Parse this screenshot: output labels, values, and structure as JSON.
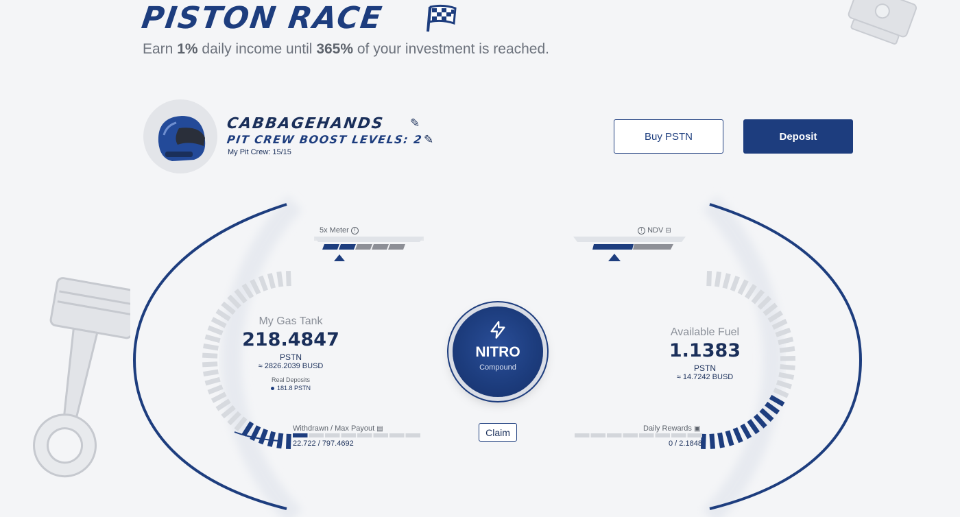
{
  "header": {
    "title": "PISTON RACE",
    "subtitle_prefix": "Earn ",
    "subtitle_rate": "1%",
    "subtitle_mid": " daily income until ",
    "subtitle_cap": "365%",
    "subtitle_suffix": " of your investment is reached."
  },
  "profile": {
    "name": "CABBAGEHANDS",
    "boost_label": "PIT CREW BOOST LEVELS: 2",
    "pit_crew": "My Pit Crew: 15/15"
  },
  "actions": {
    "buy_label": "Buy PSTN",
    "deposit_label": "Deposit"
  },
  "left_gauge": {
    "meter_label": "5x Meter",
    "title": "My Gas Tank",
    "value": "218.4847",
    "unit": "PSTN",
    "busd": "≈ 2826.2039 BUSD",
    "real_deposits_label": "Real Deposits",
    "real_deposits_value": "181.8 PSTN",
    "progress_label": "Withdrawn / Max Payout",
    "progress_value": "22.722 / 797.4692",
    "progress_fraction": 0.0285,
    "meter_fill_segments": 2
  },
  "right_gauge": {
    "meter_label": "NDV",
    "title": "Available Fuel",
    "value": "1.1383",
    "unit": "PSTN",
    "busd": "≈ 14.7242 BUSD",
    "progress_label": "Daily Rewards",
    "progress_value": "0 / 2.1848",
    "progress_fraction": 0
  },
  "nitro": {
    "title": "NITRO",
    "subtitle": "Compound"
  },
  "claim_label": "Claim",
  "colors": {
    "primary": "#1d3d7e",
    "background": "#f4f5f7",
    "muted": "#6c727c"
  },
  "icons": [
    "checkered-flag-icon",
    "pencil-icon",
    "info-icon",
    "lightning-icon",
    "helmet-icon",
    "piston-icon"
  ]
}
